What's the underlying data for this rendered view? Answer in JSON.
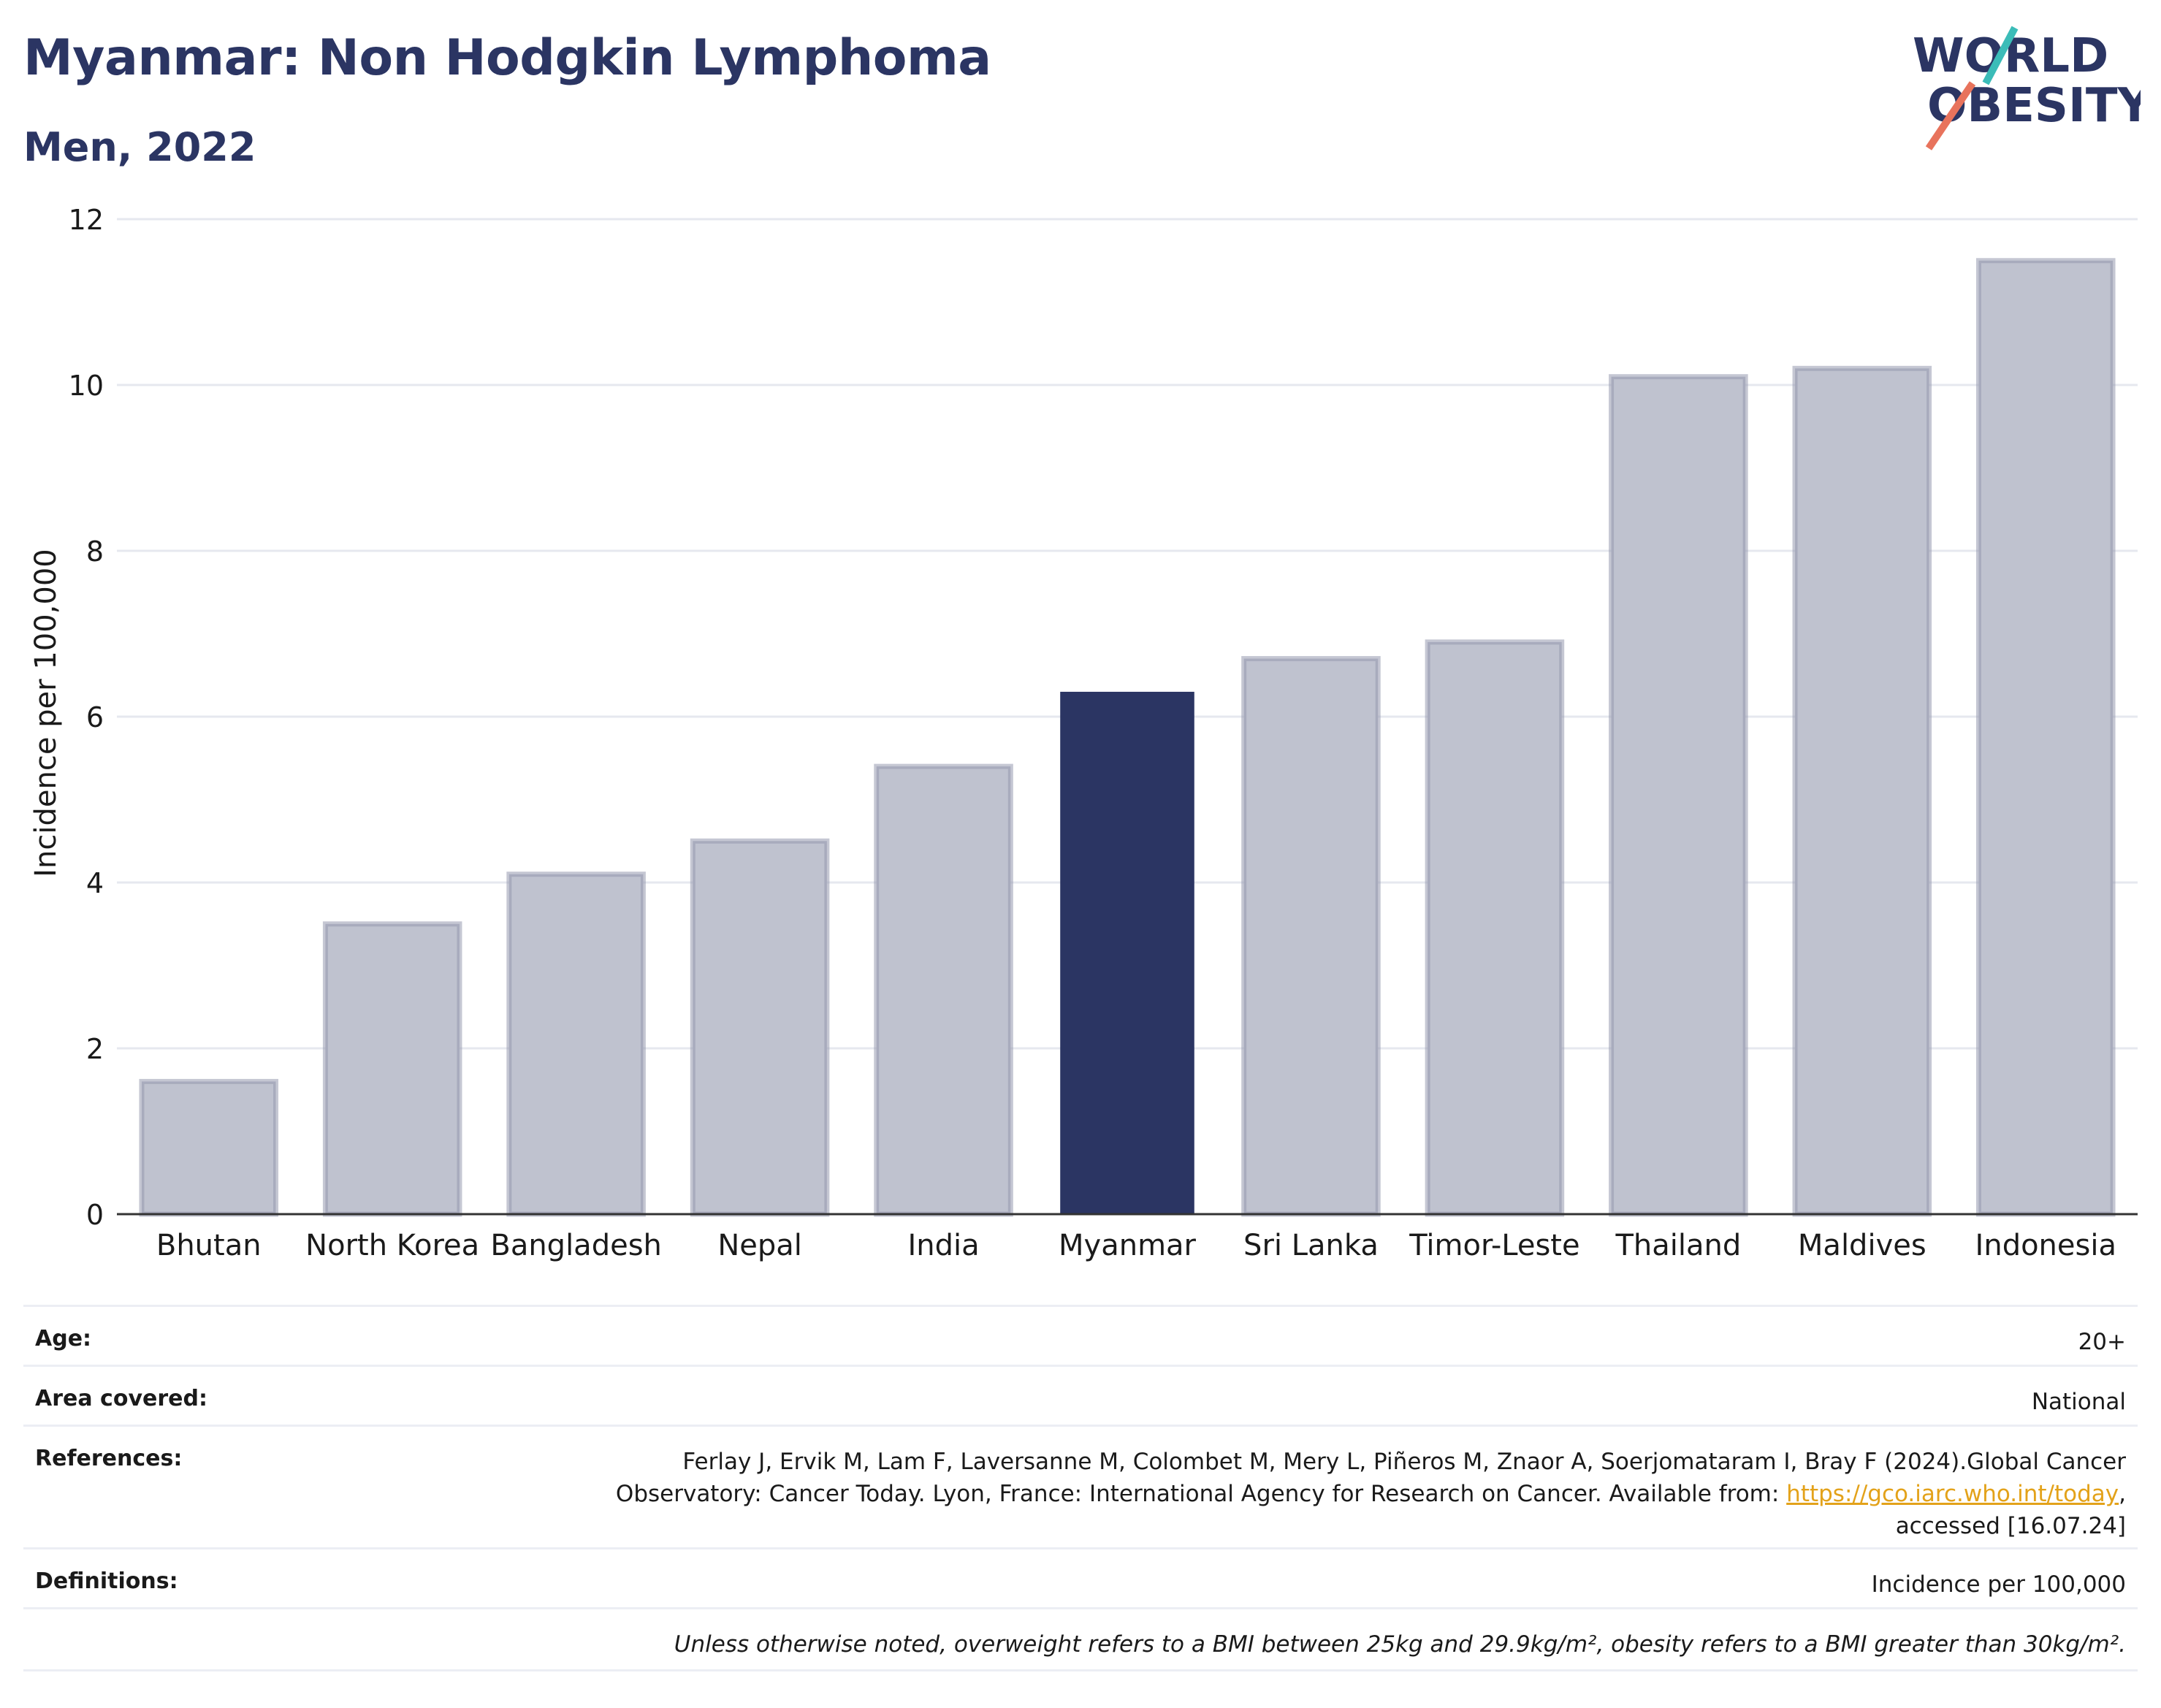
{
  "header": {
    "title": "Myanmar: Non Hodgkin Lymphoma",
    "subtitle": "Men, 2022"
  },
  "logo": {
    "line1": "WORLD",
    "line2": "OBESITY",
    "text_color": "#2b3563",
    "accent_teal": "#3bbcb8",
    "accent_coral": "#e8735c"
  },
  "chart_data": {
    "type": "bar",
    "categories": [
      "Bhutan",
      "North Korea",
      "Bangladesh",
      "Nepal",
      "India",
      "Myanmar",
      "Sri Lanka",
      "Timor-Leste",
      "Thailand",
      "Maldives",
      "Indonesia"
    ],
    "values": [
      1.6,
      3.5,
      4.1,
      4.5,
      5.4,
      6.3,
      6.7,
      6.9,
      10.1,
      10.2,
      11.5
    ],
    "highlight": "Myanmar",
    "ylabel": "Incidence per 100,000",
    "ylim": [
      0,
      12
    ],
    "yticks": [
      0,
      2,
      4,
      6,
      8,
      10,
      12
    ],
    "grid": true,
    "colors": {
      "bar": "#bfc2cf",
      "bar_border": "#9599ae",
      "highlight": "#2b3563",
      "grid": "#e6e8ef",
      "axis": "#333333"
    }
  },
  "meta": {
    "age_label": "Age:",
    "age_value": "20+",
    "area_label": "Area covered:",
    "area_value": "National",
    "references_label": "References:",
    "references_line1": "Ferlay J, Ervik M, Lam F, Laversanne M, Colombet M, Mery L, Piñeros M, Znaor A, Soerjomataram I, Bray F (2024).Global Cancer",
    "references_line2_pre": "Observatory: Cancer Today. Lyon, France: International Agency for Research on Cancer. Available from: ",
    "references_link": "https://gco.iarc.who.int/today",
    "references_line2_post": ",",
    "references_line3": "accessed [16.07.24]",
    "definitions_label": "Definitions:",
    "definitions_value": "Incidence per 100,000",
    "note": "Unless otherwise noted, overweight refers to a BMI between 25kg and 29.9kg/m², obesity refers to a BMI greater than 30kg/m²."
  }
}
